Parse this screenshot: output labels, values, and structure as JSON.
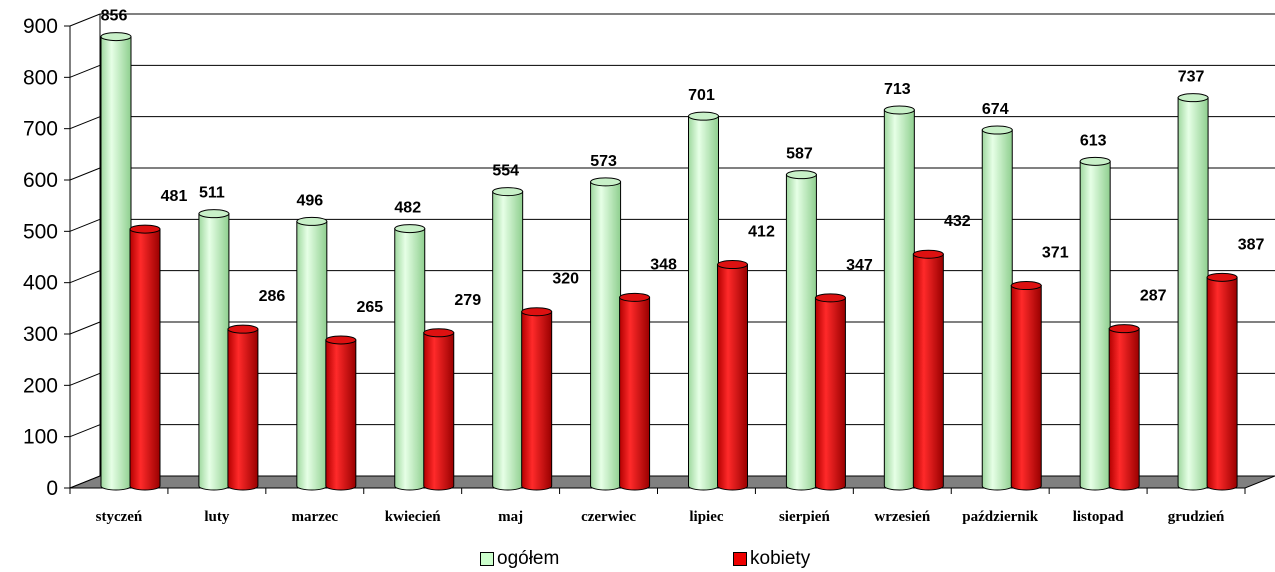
{
  "chart_data": {
    "type": "bar",
    "style": "3d-cylinder",
    "categories": [
      "styczeń",
      "luty",
      "marzec",
      "kwiecień",
      "maj",
      "czerwiec",
      "lipiec",
      "sierpień",
      "wrzesień",
      "październik",
      "listopad",
      "grudzień"
    ],
    "series": [
      {
        "name": "ogółem",
        "values": [
          856,
          511,
          496,
          482,
          554,
          573,
          701,
          587,
          713,
          674,
          613,
          737
        ],
        "color": "#ccffcc"
      },
      {
        "name": "kobiety",
        "values": [
          481,
          286,
          265,
          279,
          320,
          348,
          412,
          347,
          432,
          371,
          287,
          387
        ],
        "color": "#ee0000"
      }
    ],
    "title": "",
    "xlabel": "",
    "ylabel": "",
    "ylim": [
      0,
      900
    ],
    "yticks": [
      0,
      100,
      200,
      300,
      400,
      500,
      600,
      700,
      800,
      900
    ],
    "grid": true,
    "data_labels": true,
    "legend_position": "bottom"
  }
}
